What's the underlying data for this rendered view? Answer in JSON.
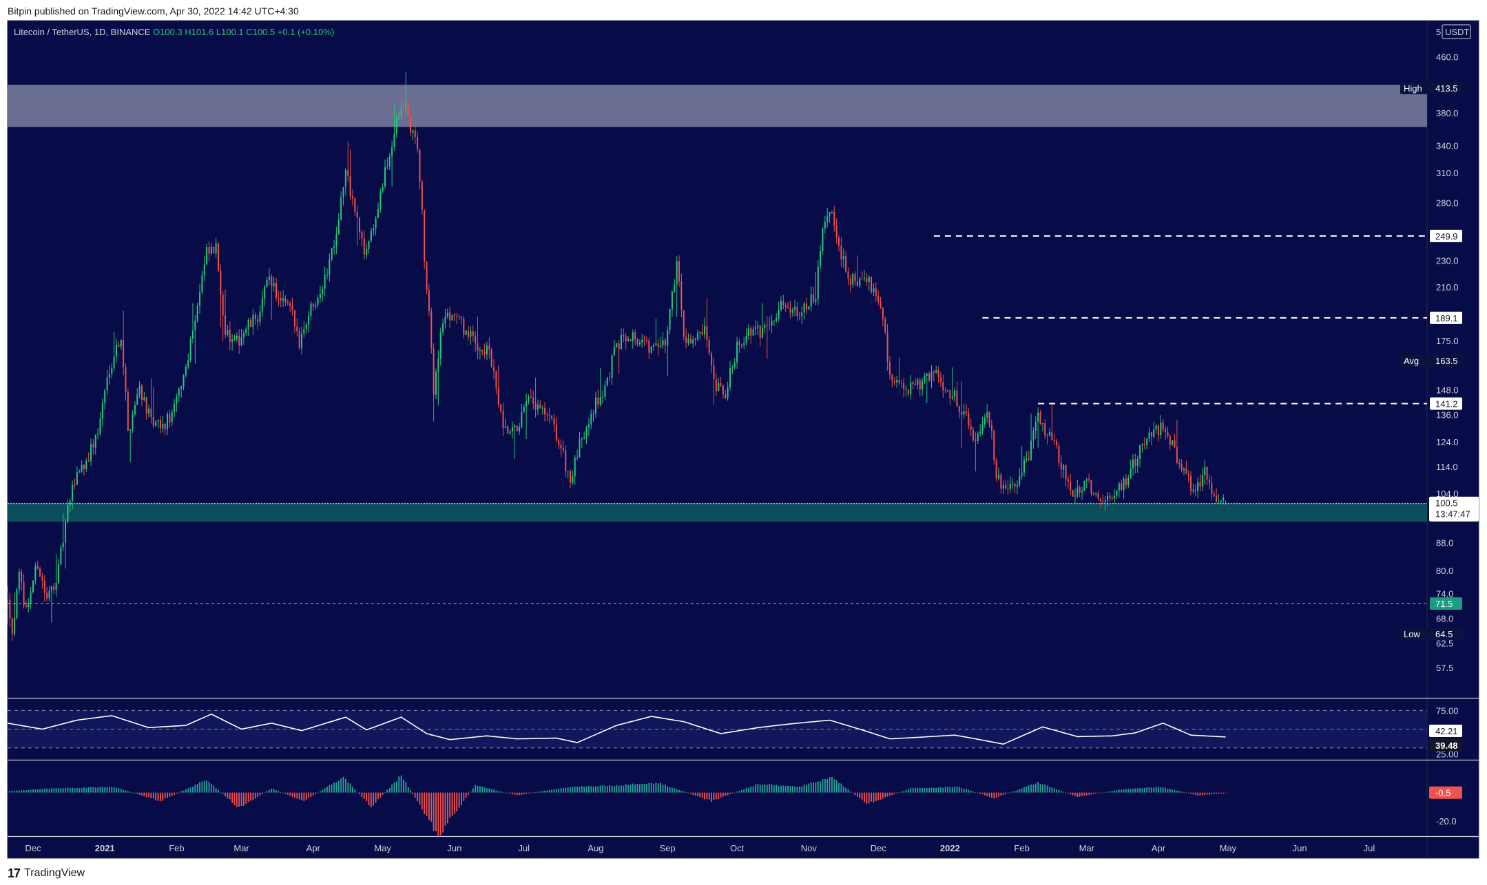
{
  "topbar": "Bitpin published on TradingView.com, Apr 30, 2022 14:42 UTC+4:30",
  "brand": {
    "logo": "17",
    "name": "TradingView"
  },
  "legend": {
    "symbol": "Litecoin / TetherUS, 1D, BINANCE",
    "o": "O100.3",
    "h": "H101.6",
    "l": "L100.1",
    "c": "C100.5",
    "chg": "+0.1 (+0.10%)"
  },
  "colors": {
    "background": "#070b47",
    "up": "#26c97a",
    "down": "#f0504a",
    "resistance_zone": "#6a6e93",
    "support_zone": "#0c4d5c",
    "rsi_line": "#ffffff",
    "hist_up": "#26a69a",
    "hist_down": "#ef5350"
  },
  "chart_data": [
    {
      "type": "candlestick",
      "title": "Litecoin / TetherUS, 1D, BINANCE",
      "y_scale": "log",
      "ylim": [
        52,
        520
      ],
      "ylabel": "USDT",
      "y_ticks": [
        460.0,
        380.0,
        340.0,
        310.0,
        280.0,
        230.0,
        210.0,
        175.0,
        148.0,
        136.0,
        124.0,
        114.0,
        104.0,
        88.0,
        80.0,
        74.0,
        68.0,
        62.5,
        57.5
      ],
      "y_tick_labels": [
        "460.0",
        "380.0",
        "340.0",
        "310.0",
        "280.0",
        "230.0",
        "210.0",
        "175.0",
        "148.0",
        "136.0",
        "124.0",
        "114.0",
        "104.0",
        "88.0",
        "80.0",
        "74.0",
        "68.0",
        "62.5",
        "57.5"
      ],
      "x_ticks": [
        {
          "date": "2020-12-01",
          "label": "Dec",
          "bold": false
        },
        {
          "date": "2021-01-01",
          "label": "2021",
          "bold": true
        },
        {
          "date": "2021-02-01",
          "label": "Feb",
          "bold": false
        },
        {
          "date": "2021-03-01",
          "label": "Mar",
          "bold": false
        },
        {
          "date": "2021-04-01",
          "label": "Apr",
          "bold": false
        },
        {
          "date": "2021-05-01",
          "label": "May",
          "bold": false
        },
        {
          "date": "2021-06-01",
          "label": "Jun",
          "bold": false
        },
        {
          "date": "2021-07-01",
          "label": "Jul",
          "bold": false
        },
        {
          "date": "2021-08-01",
          "label": "Aug",
          "bold": false
        },
        {
          "date": "2021-09-01",
          "label": "Sep",
          "bold": false
        },
        {
          "date": "2021-10-01",
          "label": "Oct",
          "bold": false
        },
        {
          "date": "2021-11-01",
          "label": "Nov",
          "bold": false
        },
        {
          "date": "2021-12-01",
          "label": "Dec",
          "bold": false
        },
        {
          "date": "2022-01-01",
          "label": "2022",
          "bold": true
        },
        {
          "date": "2022-02-01",
          "label": "Feb",
          "bold": false
        },
        {
          "date": "2022-03-01",
          "label": "Mar",
          "bold": false
        },
        {
          "date": "2022-04-01",
          "label": "Apr",
          "bold": false
        },
        {
          "date": "2022-05-01",
          "label": "May",
          "bold": false
        },
        {
          "date": "2022-06-01",
          "label": "Jun",
          "bold": false
        },
        {
          "date": "2022-07-01",
          "label": "Jul",
          "bold": false
        }
      ],
      "x_range": [
        "2020-11-20",
        "2022-07-26"
      ],
      "price_anchors": [
        [
          "2020-11-20",
          74
        ],
        [
          "2020-11-22",
          65
        ],
        [
          "2020-11-25",
          78
        ],
        [
          "2020-11-28",
          70
        ],
        [
          "2020-12-03",
          82
        ],
        [
          "2020-12-07",
          72
        ],
        [
          "2020-12-12",
          80
        ],
        [
          "2020-12-16",
          98
        ],
        [
          "2020-12-20",
          112
        ],
        [
          "2020-12-24",
          116
        ],
        [
          "2020-12-29",
          128
        ],
        [
          "2021-01-03",
          160
        ],
        [
          "2021-01-08",
          178
        ],
        [
          "2021-01-11",
          128
        ],
        [
          "2021-01-16",
          150
        ],
        [
          "2021-01-21",
          132
        ],
        [
          "2021-01-26",
          130
        ],
        [
          "2021-01-31",
          138
        ],
        [
          "2021-02-05",
          160
        ],
        [
          "2021-02-10",
          198
        ],
        [
          "2021-02-14",
          235
        ],
        [
          "2021-02-18",
          238
        ],
        [
          "2021-02-22",
          180
        ],
        [
          "2021-02-26",
          172
        ],
        [
          "2021-03-03",
          182
        ],
        [
          "2021-03-09",
          192
        ],
        [
          "2021-03-13",
          220
        ],
        [
          "2021-03-17",
          200
        ],
        [
          "2021-03-22",
          195
        ],
        [
          "2021-03-26",
          175
        ],
        [
          "2021-03-31",
          196
        ],
        [
          "2021-04-06",
          215
        ],
        [
          "2021-04-11",
          255
        ],
        [
          "2021-04-15",
          310
        ],
        [
          "2021-04-19",
          272
        ],
        [
          "2021-04-23",
          235
        ],
        [
          "2021-04-28",
          265
        ],
        [
          "2021-05-04",
          330
        ],
        [
          "2021-05-08",
          378
        ],
        [
          "2021-05-11",
          390
        ],
        [
          "2021-05-13",
          360
        ],
        [
          "2021-05-16",
          340
        ],
        [
          "2021-05-19",
          230
        ],
        [
          "2021-05-23",
          148
        ],
        [
          "2021-05-27",
          188
        ],
        [
          "2021-06-01",
          192
        ],
        [
          "2021-06-06",
          180
        ],
        [
          "2021-06-11",
          172
        ],
        [
          "2021-06-16",
          168
        ],
        [
          "2021-06-22",
          128
        ],
        [
          "2021-06-27",
          128
        ],
        [
          "2021-07-03",
          142
        ],
        [
          "2021-07-08",
          138
        ],
        [
          "2021-07-13",
          132
        ],
        [
          "2021-07-18",
          118
        ],
        [
          "2021-07-21",
          108
        ],
        [
          "2021-07-25",
          122
        ],
        [
          "2021-07-30",
          138
        ],
        [
          "2021-08-05",
          148
        ],
        [
          "2021-08-10",
          172
        ],
        [
          "2021-08-15",
          180
        ],
        [
          "2021-08-20",
          175
        ],
        [
          "2021-08-25",
          170
        ],
        [
          "2021-08-31",
          172
        ],
        [
          "2021-09-05",
          228
        ],
        [
          "2021-09-08",
          178
        ],
        [
          "2021-09-13",
          175
        ],
        [
          "2021-09-17",
          180
        ],
        [
          "2021-09-21",
          150
        ],
        [
          "2021-09-26",
          145
        ],
        [
          "2021-10-01",
          172
        ],
        [
          "2021-10-06",
          180
        ],
        [
          "2021-10-11",
          180
        ],
        [
          "2021-10-16",
          190
        ],
        [
          "2021-10-21",
          198
        ],
        [
          "2021-10-26",
          195
        ],
        [
          "2021-10-31",
          195
        ],
        [
          "2021-11-04",
          205
        ],
        [
          "2021-11-08",
          265
        ],
        [
          "2021-11-11",
          270
        ],
        [
          "2021-11-14",
          238
        ],
        [
          "2021-11-18",
          218
        ],
        [
          "2021-11-22",
          212
        ],
        [
          "2021-11-26",
          215
        ],
        [
          "2021-11-30",
          208
        ],
        [
          "2021-12-03",
          190
        ],
        [
          "2021-12-06",
          155
        ],
        [
          "2021-12-10",
          150
        ],
        [
          "2021-12-14",
          148
        ],
        [
          "2021-12-19",
          150
        ],
        [
          "2021-12-24",
          158
        ],
        [
          "2021-12-29",
          150
        ],
        [
          "2022-01-03",
          145
        ],
        [
          "2022-01-08",
          134
        ],
        [
          "2022-01-12",
          125
        ],
        [
          "2022-01-17",
          140
        ],
        [
          "2022-01-21",
          112
        ],
        [
          "2022-01-25",
          104
        ],
        [
          "2022-01-30",
          108
        ],
        [
          "2022-02-04",
          118
        ],
        [
          "2022-02-08",
          135
        ],
        [
          "2022-02-12",
          128
        ],
        [
          "2022-02-17",
          118
        ],
        [
          "2022-02-21",
          106
        ],
        [
          "2022-02-25",
          104
        ],
        [
          "2022-03-01",
          110
        ],
        [
          "2022-03-06",
          100
        ],
        [
          "2022-03-11",
          103
        ],
        [
          "2022-03-16",
          106
        ],
        [
          "2022-03-21",
          114
        ],
        [
          "2022-03-27",
          126
        ],
        [
          "2022-04-01",
          130
        ],
        [
          "2022-04-05",
          128
        ],
        [
          "2022-04-09",
          118
        ],
        [
          "2022-04-13",
          110
        ],
        [
          "2022-04-17",
          104
        ],
        [
          "2022-04-21",
          112
        ],
        [
          "2022-04-25",
          104
        ],
        [
          "2022-04-30",
          100.5
        ]
      ],
      "last_candle": {
        "open": 100.3,
        "high": 101.6,
        "low": 100.1,
        "close": 100.5
      },
      "zones": [
        {
          "name": "resistance",
          "from": 362,
          "to": 418
        },
        {
          "name": "support",
          "from": 94.5,
          "to": 100.7
        }
      ],
      "level_lines": [
        {
          "value": 249.9,
          "label": "249.9",
          "start": "2021-12-25"
        },
        {
          "value": 189.1,
          "label": "189.1",
          "start": "2022-01-15"
        },
        {
          "value": 141.2,
          "label": "141.2",
          "start": "2022-02-08"
        },
        {
          "value": 71.5,
          "label": "71.5",
          "start": "2020-11-20"
        }
      ],
      "markers": [
        {
          "label": "High",
          "value": 413.5,
          "value_label": "413.5"
        },
        {
          "label": "Avg",
          "value": 163.5,
          "value_label": "163.5"
        },
        {
          "label": "Low",
          "value": 64.5,
          "value_label": "64.5"
        }
      ],
      "current": {
        "price": "100.5",
        "countdown": "13:47:47"
      },
      "unit_label": "USDT",
      "scale_count": "5"
    },
    {
      "type": "line",
      "name": "RSI",
      "ylim": [
        10,
        90
      ],
      "levels": [
        75,
        50,
        25
      ],
      "y_tick_labels": [
        "75.00",
        "25.00"
      ],
      "values_labels": [
        "42.21",
        "39.48"
      ],
      "rsi_anchors": [
        [
          "2020-11-20",
          58
        ],
        [
          "2020-12-05",
          50
        ],
        [
          "2020-12-20",
          62
        ],
        [
          "2021-01-04",
          68
        ],
        [
          "2021-01-20",
          52
        ],
        [
          "2021-02-05",
          55
        ],
        [
          "2021-02-16",
          70
        ],
        [
          "2021-03-01",
          50
        ],
        [
          "2021-03-14",
          58
        ],
        [
          "2021-03-27",
          48
        ],
        [
          "2021-04-15",
          66
        ],
        [
          "2021-04-24",
          49
        ],
        [
          "2021-05-09",
          66
        ],
        [
          "2021-05-20",
          44
        ],
        [
          "2021-05-30",
          36
        ],
        [
          "2021-06-15",
          41
        ],
        [
          "2021-06-28",
          37
        ],
        [
          "2021-07-15",
          38
        ],
        [
          "2021-07-24",
          32
        ],
        [
          "2021-08-10",
          55
        ],
        [
          "2021-08-25",
          67
        ],
        [
          "2021-09-08",
          60
        ],
        [
          "2021-09-24",
          44
        ],
        [
          "2021-10-10",
          52
        ],
        [
          "2021-10-24",
          57
        ],
        [
          "2021-11-10",
          62
        ],
        [
          "2021-11-24",
          49
        ],
        [
          "2021-12-06",
          37
        ],
        [
          "2021-12-18",
          39
        ],
        [
          "2022-01-03",
          42
        ],
        [
          "2022-01-12",
          37
        ],
        [
          "2022-01-24",
          30
        ],
        [
          "2022-02-10",
          53
        ],
        [
          "2022-02-25",
          40
        ],
        [
          "2022-03-12",
          41
        ],
        [
          "2022-03-22",
          45
        ],
        [
          "2022-04-03",
          58
        ],
        [
          "2022-04-15",
          42
        ],
        [
          "2022-04-30",
          39.5
        ]
      ]
    },
    {
      "type": "bar",
      "name": "MACD histogram",
      "ylim": [
        -30,
        22
      ],
      "y_tick_labels": [
        "-20.0"
      ],
      "value_label": "-0.5",
      "hist_anchors": [
        [
          "2020-11-20",
          1
        ],
        [
          "2020-12-10",
          3
        ],
        [
          "2021-01-05",
          4
        ],
        [
          "2021-01-25",
          -6
        ],
        [
          "2021-02-14",
          9
        ],
        [
          "2021-02-28",
          -11
        ],
        [
          "2021-03-14",
          3
        ],
        [
          "2021-03-28",
          -6
        ],
        [
          "2021-04-14",
          11
        ],
        [
          "2021-04-26",
          -10
        ],
        [
          "2021-05-09",
          12
        ],
        [
          "2021-05-25",
          -30
        ],
        [
          "2021-06-10",
          5
        ],
        [
          "2021-06-28",
          -2
        ],
        [
          "2021-07-20",
          4
        ],
        [
          "2021-08-10",
          5
        ],
        [
          "2021-08-28",
          7
        ],
        [
          "2021-09-20",
          -6
        ],
        [
          "2021-10-10",
          6
        ],
        [
          "2021-10-28",
          4
        ],
        [
          "2021-11-11",
          11
        ],
        [
          "2021-11-26",
          -8
        ],
        [
          "2021-12-15",
          3
        ],
        [
          "2022-01-05",
          4
        ],
        [
          "2022-01-20",
          -4
        ],
        [
          "2022-02-08",
          7
        ],
        [
          "2022-02-25",
          -3
        ],
        [
          "2022-03-15",
          2
        ],
        [
          "2022-04-02",
          4
        ],
        [
          "2022-04-18",
          -2
        ],
        [
          "2022-04-30",
          -0.5
        ]
      ]
    }
  ]
}
